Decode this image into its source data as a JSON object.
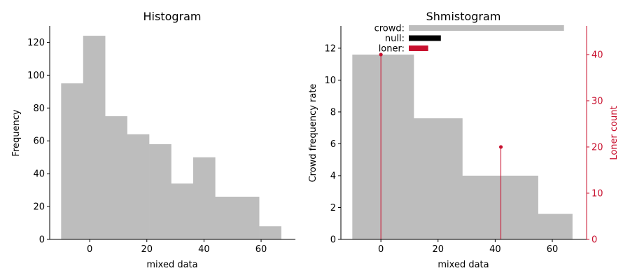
{
  "colors": {
    "bar": "#bdbdbd",
    "axis": "#000000",
    "accent": "#c8102e",
    "null_bar": "#000000"
  },
  "chart_data": [
    {
      "type": "bar",
      "subtype": "histogram",
      "title": "Histogram",
      "xlabel": "mixed data",
      "ylabel": "Frequency",
      "xlim": [
        -14,
        72
      ],
      "ylim": [
        0,
        130
      ],
      "xticks": [
        0,
        20,
        40,
        60
      ],
      "yticks": [
        0,
        20,
        40,
        60,
        80,
        100,
        120
      ],
      "bins": [
        {
          "x0": -10,
          "x1": -2.3,
          "value": 95
        },
        {
          "x0": -2.3,
          "x1": 5.4,
          "value": 124
        },
        {
          "x0": 5.4,
          "x1": 13.1,
          "value": 75
        },
        {
          "x0": 13.1,
          "x1": 20.8,
          "value": 64
        },
        {
          "x0": 20.8,
          "x1": 28.5,
          "value": 58
        },
        {
          "x0": 28.5,
          "x1": 36.2,
          "value": 34
        },
        {
          "x0": 36.2,
          "x1": 43.9,
          "value": 50
        },
        {
          "x0": 43.9,
          "x1": 51.6,
          "value": 26
        },
        {
          "x0": 51.6,
          "x1": 59.3,
          "value": 26
        },
        {
          "x0": 59.3,
          "x1": 67,
          "value": 8
        }
      ],
      "spines": "left-bottom",
      "grid": false
    },
    {
      "type": "bar",
      "subtype": "histogram-with-stems",
      "title": "Shmistogram",
      "xlabel": "mixed data",
      "ylabel": "Crowd frequency rate",
      "ylabel_right": "Loner count",
      "xlim": [
        -14,
        72
      ],
      "ylim": [
        0,
        13.4
      ],
      "ylim_right": [
        0,
        46.2
      ],
      "xticks": [
        0,
        20,
        40,
        60
      ],
      "yticks": [
        0,
        2,
        4,
        6,
        8,
        10,
        12
      ],
      "yticks_right": [
        0,
        10,
        20,
        30,
        40
      ],
      "bins": [
        {
          "x0": -10,
          "x1": 11.5,
          "value": 11.6
        },
        {
          "x0": 11.5,
          "x1": 28.5,
          "value": 7.6
        },
        {
          "x0": 28.5,
          "x1": 55,
          "value": 4.0
        },
        {
          "x0": 55,
          "x1": 67,
          "value": 1.6
        }
      ],
      "loners": [
        {
          "x": 0,
          "count": 40
        },
        {
          "x": 42,
          "count": 20
        }
      ],
      "legend": {
        "position": "top",
        "entries": [
          {
            "label": "crowd:",
            "fraction": 0.92,
            "color": "#bdbdbd"
          },
          {
            "label": "null:",
            "fraction": 0.19,
            "color": "#000000"
          },
          {
            "label": "loner:",
            "fraction": 0.115,
            "color": "#c8102e"
          }
        ]
      },
      "spines": "left-bottom-right",
      "grid": false
    }
  ]
}
